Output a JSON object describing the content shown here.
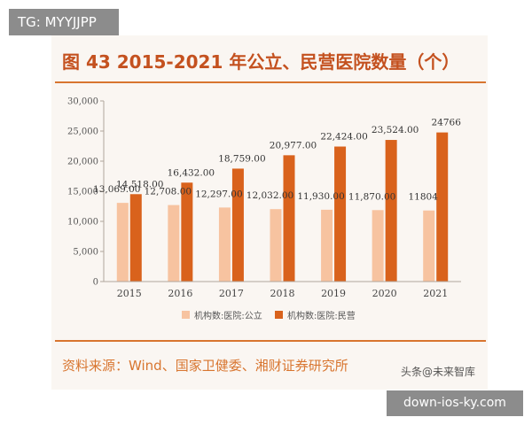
{
  "badges": {
    "top_left": "TG: MYYJJPP",
    "bottom_right": "down-ios-ky.com",
    "watermark": "头条@未来智库"
  },
  "header": {
    "title": "图 43 2015-2021 年公立、民营医院数量（个）"
  },
  "footer": {
    "source": "资料来源：Wind、国家卫健委、湘财证券研究所"
  },
  "colors": {
    "public": "#f7c3a0",
    "private": "#d9621c",
    "accent": "#d8752f",
    "title": "#c4511f",
    "panel": "#faf6f2"
  },
  "chart_data": {
    "type": "bar",
    "categories": [
      "2015",
      "2016",
      "2017",
      "2018",
      "2019",
      "2020",
      "2021"
    ],
    "series": [
      {
        "name": "机构数:医院:公立",
        "values": [
          13069,
          12708,
          12297,
          12032,
          11930,
          11870,
          11804
        ],
        "labels": [
          "13,069.00",
          "12,708.00",
          "12,297.00",
          "12,032.00",
          "11,930.00",
          "11,870.00",
          "11804"
        ]
      },
      {
        "name": "机构数:医院:民营",
        "values": [
          14518,
          16432,
          18759,
          20977,
          22424,
          23524,
          24766
        ],
        "labels": [
          "14,518.00",
          "16,432.00",
          "18,759.00",
          "20,977.00",
          "22,424.00",
          "23,524.00",
          "24766"
        ]
      }
    ],
    "yticks": [
      "0",
      "5,000",
      "10,000",
      "15,000",
      "20,000",
      "25,000",
      "30,000"
    ],
    "ylim": [
      0,
      30000
    ],
    "grid": false,
    "legend_position": "bottom-center"
  }
}
